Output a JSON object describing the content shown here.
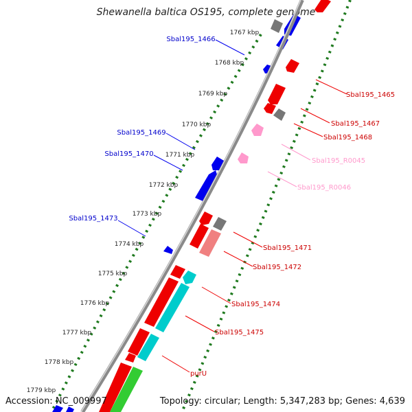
{
  "title": "Shewanella baltica OS195, complete genome",
  "footer": {
    "accession": "Accession: NC_009997",
    "topology": "Topology: circular; Length: 5,347,283 bp; Genes: 4,639"
  },
  "colors": {
    "backbone": "#8a8a8a",
    "tick_dots": "#1f7a1f",
    "plus_gene": "#ee0000",
    "minus_gene": "#0000ee",
    "pseudo_gene": "#777777",
    "rna_gene": "#ff99cc",
    "cyan_gene": "#00cccc",
    "green_gene": "#33cc33"
  },
  "ticks": [
    "1767 kbp",
    "1768 kbp",
    "1769 kbp",
    "1770 kbp",
    "1771 kbp",
    "1772 kbp",
    "1773 kbp",
    "1774 kbp",
    "1775 kbp",
    "1776 kbp",
    "1777 kbp",
    "1778 kbp",
    "1779 kbp"
  ],
  "gene_labels": [
    {
      "label": "Sbal195_1466",
      "strand": "minus"
    },
    {
      "label": "Sbal195_1465",
      "strand": "plus"
    },
    {
      "label": "Sbal195_1467",
      "strand": "plus"
    },
    {
      "label": "Sbal195_1468",
      "strand": "plus"
    },
    {
      "label": "Sbal195_1469",
      "strand": "minus"
    },
    {
      "label": "Sbal195_R0045",
      "strand": "rna"
    },
    {
      "label": "Sbal195_1470",
      "strand": "minus"
    },
    {
      "label": "Sbal195_R0046",
      "strand": "rna"
    },
    {
      "label": "Sbal195_1473",
      "strand": "minus"
    },
    {
      "label": "Sbal195_1471",
      "strand": "plus"
    },
    {
      "label": "Sbal195_1472",
      "strand": "plus"
    },
    {
      "label": "Sbal195_1474",
      "strand": "plus"
    },
    {
      "label": "Sbal195_1475",
      "strand": "plus"
    },
    {
      "label": "purU",
      "strand": "plus"
    }
  ]
}
